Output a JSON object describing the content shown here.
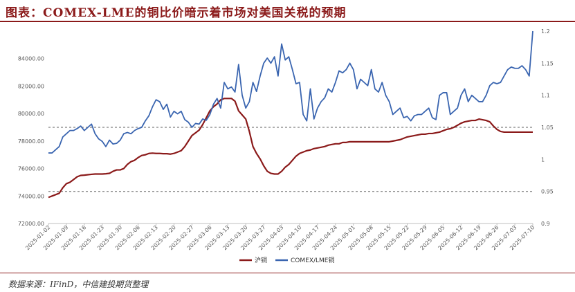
{
  "title": "图表：COMEX-LME的铜比价暗示着市场对美国关税的预期",
  "source": "数据来源：IFinD，中信建投期货整理",
  "colors": {
    "shfe": "#8b1a1a",
    "comex_lme": "#3a65b0",
    "reference_line": "#7f7f7f"
  },
  "chart_data": {
    "type": "line",
    "x": [
      "2025-01-02",
      "2025-01-03",
      "2025-01-06",
      "2025-01-07",
      "2025-01-08",
      "2025-01-09",
      "2025-01-10",
      "2025-01-13",
      "2025-01-14",
      "2025-01-15",
      "2025-01-16",
      "2025-01-17",
      "2025-01-20",
      "2025-01-21",
      "2025-01-22",
      "2025-01-23",
      "2025-01-24",
      "2025-01-27",
      "2025-01-28",
      "2025-01-29",
      "2025-01-30",
      "2025-01-31",
      "2025-02-03",
      "2025-02-04",
      "2025-02-05",
      "2025-02-06",
      "2025-02-07",
      "2025-02-10",
      "2025-02-11",
      "2025-02-12",
      "2025-02-13",
      "2025-02-14",
      "2025-02-17",
      "2025-02-18",
      "2025-02-19",
      "2025-02-20",
      "2025-02-21",
      "2025-02-24",
      "2025-02-25",
      "2025-02-26",
      "2025-02-27",
      "2025-02-28",
      "2025-03-03",
      "2025-03-04",
      "2025-03-05",
      "2025-03-06",
      "2025-03-07",
      "2025-03-10",
      "2025-03-11",
      "2025-03-12",
      "2025-03-13",
      "2025-03-14",
      "2025-03-17",
      "2025-03-18",
      "2025-03-19",
      "2025-03-20",
      "2025-03-21",
      "2025-03-24",
      "2025-03-25",
      "2025-03-26",
      "2025-03-27",
      "2025-03-28",
      "2025-03-31",
      "2025-04-01",
      "2025-04-02",
      "2025-04-03",
      "2025-04-04",
      "2025-04-07",
      "2025-04-08",
      "2025-04-09",
      "2025-04-10",
      "2025-04-11",
      "2025-04-14",
      "2025-04-15",
      "2025-04-16",
      "2025-04-17",
      "2025-04-18",
      "2025-04-21",
      "2025-04-22",
      "2025-04-23",
      "2025-04-24",
      "2025-04-25",
      "2025-04-28",
      "2025-04-29",
      "2025-04-30",
      "2025-05-01",
      "2025-05-02",
      "2025-05-05",
      "2025-05-06",
      "2025-05-07",
      "2025-05-08",
      "2025-05-09",
      "2025-05-12",
      "2025-05-13",
      "2025-05-14",
      "2025-05-15",
      "2025-05-16",
      "2025-05-19",
      "2025-05-20",
      "2025-05-21",
      "2025-05-22",
      "2025-05-23",
      "2025-05-26",
      "2025-05-27",
      "2025-05-28",
      "2025-05-29",
      "2025-05-30",
      "2025-06-02",
      "2025-06-03",
      "2025-06-04",
      "2025-06-05",
      "2025-06-06",
      "2025-06-09",
      "2025-06-10",
      "2025-06-11",
      "2025-06-12",
      "2025-06-13",
      "2025-06-16",
      "2025-06-17",
      "2025-06-18",
      "2025-06-19",
      "2025-06-20",
      "2025-06-23",
      "2025-06-24",
      "2025-06-25",
      "2025-06-26",
      "2025-06-27",
      "2025-06-30",
      "2025-07-01",
      "2025-07-02",
      "2025-07-03",
      "2025-07-04",
      "2025-07-07",
      "2025-07-08",
      "2025-07-09",
      "2025-07-10"
    ],
    "x_ticks": [
      "2025-01-02",
      "2025-01-09",
      "2025-01-16",
      "2025-01-23",
      "2025-01-30",
      "2025-02-06",
      "2025-02-13",
      "2025-02-20",
      "2025-02-27",
      "2025-03-06",
      "2025-03-13",
      "2025-03-20",
      "2025-03-27",
      "2025-04-03",
      "2025-04-10",
      "2025-04-17",
      "2025-04-24",
      "2025-05-01",
      "2025-05-08",
      "2025-05-15",
      "2025-05-22",
      "2025-05-29",
      "2025-06-05",
      "2025-06-12",
      "2025-06-19",
      "2025-06-26",
      "2025-07-03",
      "2025-07-10"
    ],
    "y_left": {
      "min": 72000,
      "max": 86000,
      "ticks": [
        "72000.00",
        "74000.00",
        "76000.00",
        "78000.00",
        "80000.00",
        "82000.00",
        "84000.00"
      ]
    },
    "y_right": {
      "min": 0.9,
      "max": 1.2,
      "ticks": [
        "0.9",
        "0.95",
        "1",
        "1.05",
        "1.1",
        "1.15",
        "1.2"
      ]
    },
    "reference_lines_right": [
      1.05,
      0.95
    ],
    "series": [
      {
        "name": "沪铜",
        "axis": "left",
        "values": [
          73900,
          74000,
          74100,
          74200,
          74600,
          74900,
          75000,
          75200,
          75400,
          75500,
          75520,
          75550,
          75580,
          75600,
          75600,
          75600,
          75620,
          75650,
          75800,
          75900,
          75900,
          76000,
          76300,
          76500,
          76600,
          76800,
          76950,
          77000,
          77100,
          77120,
          77100,
          77100,
          77080,
          77080,
          77050,
          77100,
          77200,
          77300,
          77600,
          78000,
          78400,
          78600,
          78800,
          79200,
          79700,
          80200,
          80500,
          80700,
          81000,
          81100,
          81100,
          81100,
          80900,
          80200,
          79900,
          79600,
          78700,
          77600,
          77100,
          76700,
          76200,
          75800,
          75650,
          75600,
          75600,
          75800,
          76100,
          76300,
          76600,
          76900,
          77100,
          77200,
          77300,
          77350,
          77450,
          77500,
          77550,
          77600,
          77700,
          77750,
          77800,
          77800,
          77900,
          77900,
          77950,
          77950,
          77950,
          77950,
          77950,
          77950,
          77950,
          77950,
          77950,
          77950,
          77950,
          77950,
          78000,
          78050,
          78100,
          78200,
          78300,
          78350,
          78400,
          78450,
          78500,
          78500,
          78550,
          78550,
          78600,
          78650,
          78750,
          78850,
          78900,
          79000,
          79150,
          79300,
          79400,
          79450,
          79500,
          79500,
          79600,
          79550,
          79500,
          79400,
          79100,
          78850,
          78700,
          78650,
          78650,
          78650,
          78650,
          78650,
          78650,
          78650,
          78650,
          78650
        ]
      },
      {
        "name": "COMEX/LME铜",
        "axis": "right",
        "values": [
          1.01,
          1.01,
          1.015,
          1.02,
          1.035,
          1.04,
          1.045,
          1.045,
          1.048,
          1.052,
          1.045,
          1.05,
          1.055,
          1.04,
          1.032,
          1.028,
          1.02,
          1.03,
          1.024,
          1.025,
          1.03,
          1.04,
          1.042,
          1.04,
          1.045,
          1.048,
          1.05,
          1.06,
          1.068,
          1.082,
          1.093,
          1.09,
          1.078,
          1.086,
          1.066,
          1.075,
          1.071,
          1.075,
          1.062,
          1.058,
          1.05,
          1.056,
          1.055,
          1.063,
          1.061,
          1.07,
          1.086,
          1.095,
          1.08,
          1.12,
          1.11,
          1.113,
          1.105,
          1.148,
          1.1,
          1.08,
          1.09,
          1.12,
          1.106,
          1.13,
          1.15,
          1.158,
          1.15,
          1.16,
          1.13,
          1.18,
          1.155,
          1.16,
          1.14,
          1.118,
          1.12,
          1.07,
          1.06,
          1.11,
          1.063,
          1.08,
          1.09,
          1.096,
          1.11,
          1.105,
          1.12,
          1.138,
          1.135,
          1.14,
          1.15,
          1.14,
          1.11,
          1.125,
          1.12,
          1.115,
          1.14,
          1.11,
          1.105,
          1.12,
          1.1,
          1.09,
          1.07,
          1.075,
          1.08,
          1.065,
          1.067,
          1.06,
          1.068,
          1.07,
          1.07,
          1.075,
          1.08,
          1.065,
          1.062,
          1.1,
          1.104,
          1.104,
          1.07,
          1.075,
          1.08,
          1.1,
          1.11,
          1.09,
          1.1,
          1.095,
          1.09,
          1.09,
          1.1,
          1.115,
          1.12,
          1.118,
          1.12,
          1.13,
          1.14,
          1.144,
          1.142,
          1.142,
          1.146,
          1.14,
          1.13,
          1.2
        ]
      }
    ]
  }
}
